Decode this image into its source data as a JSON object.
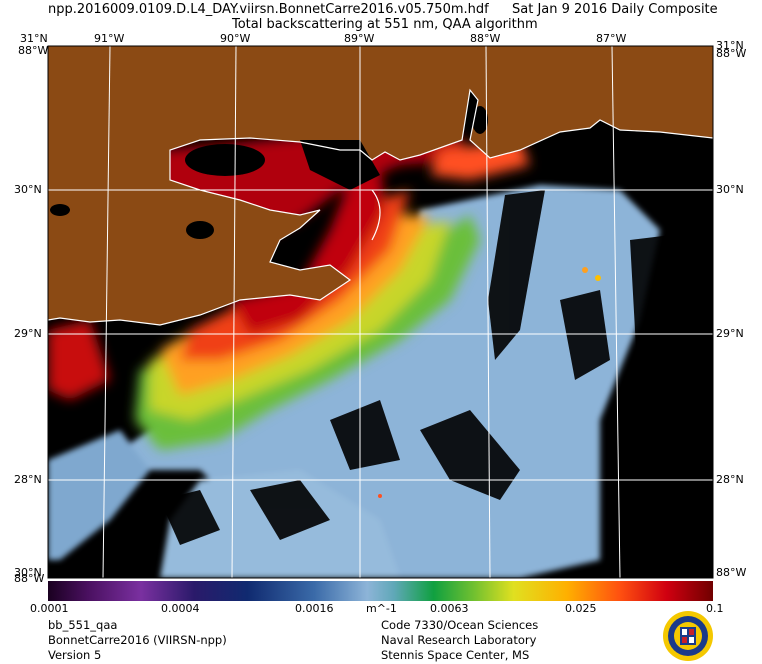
{
  "header": {
    "filename": "npp.2016009.0109.D.L4_DAY.viirsn.BonnetCarre2016.v05.750m.hdf",
    "date": "Sat Jan  9 2016 Daily Composite",
    "product": "Total backscattering at 551 nm, QAA algorithm"
  },
  "map": {
    "lat_labels": [
      "31°N",
      "30°N",
      "29°N",
      "28°N",
      "30°N"
    ],
    "lon_labels": [
      "91°W",
      "90°W",
      "89°W",
      "88°W",
      "87°W"
    ],
    "lat_left": [
      {
        "text": "31°N"
      },
      {
        "text": "30°N"
      },
      {
        "text": "29°N"
      },
      {
        "text": "28°N"
      }
    ],
    "corner_top_left": "88°W",
    "corner_top_right": "88°W",
    "corner_bottom_left": "88°W",
    "corner_bottom_right": "88°W",
    "colors": {
      "land": "#8b4a14",
      "nodata": "#000000",
      "offshore_water": "#8db4d8",
      "grid": "#ffffff"
    }
  },
  "colorbar": {
    "ticks": [
      "0.0001",
      "0.0004",
      "0.0016",
      "m^-1",
      "0.0063",
      "0.025",
      "0.1"
    ],
    "units": "m^-1",
    "scale": "log"
  },
  "footer": {
    "left_1": "bb_551_qaa",
    "left_2": "BonnetCarre2016 (VIIRSN-npp)",
    "left_3": "Version 5",
    "right_1": "Code 7330/Ocean Sciences",
    "right_2": "Naval Research Laboratory",
    "right_3": "Stennis Space Center, MS"
  },
  "seal_icon": "nrl-seal-icon"
}
